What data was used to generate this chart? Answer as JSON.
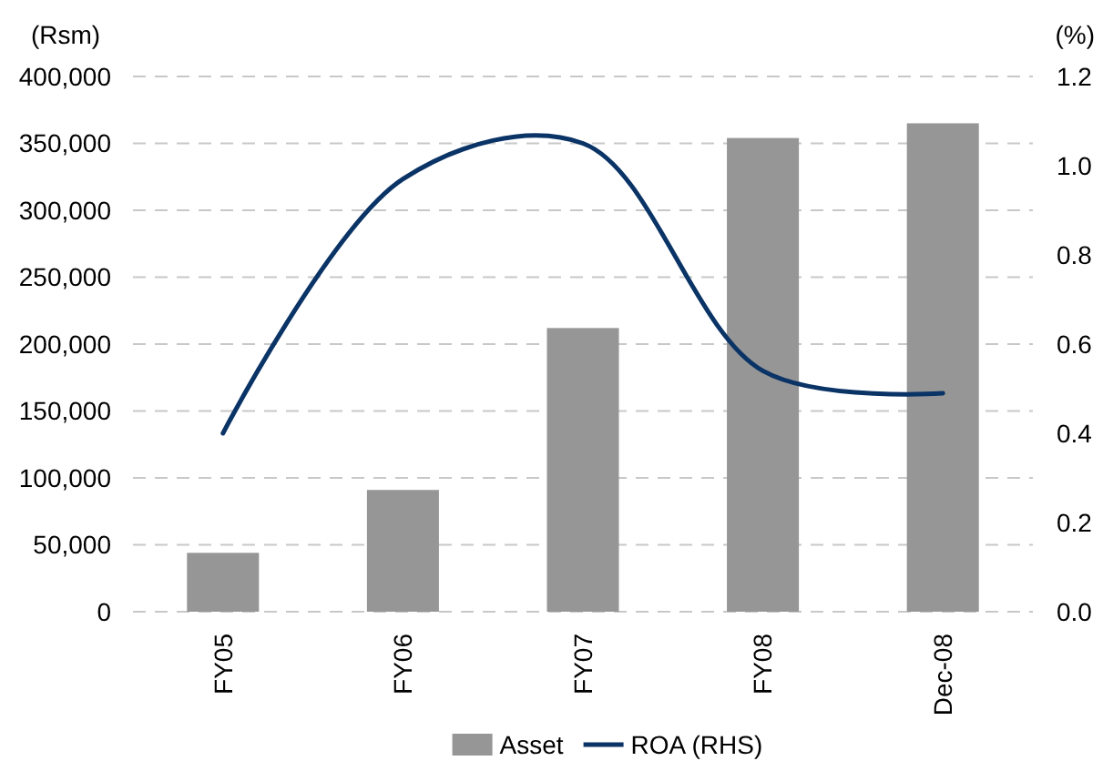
{
  "chart_data": {
    "type": "bar",
    "categories": [
      "FY05",
      "FY06",
      "FY07",
      "FY08",
      "Dec-08"
    ],
    "series": [
      {
        "name": "Asset",
        "color": "#969696",
        "values": [
          44000,
          91000,
          212000,
          354000,
          365000
        ]
      },
      {
        "name": "ROA (RHS)",
        "type": "line",
        "axis": "y2",
        "color": "#0a3366",
        "values": [
          0.4,
          0.97,
          1.05,
          0.54,
          0.49
        ]
      }
    ],
    "ylabel": "(Rsm)",
    "y2label": "(%)",
    "ylim": [
      0,
      400000
    ],
    "yticks": [
      {
        "value": 0,
        "label": "0"
      },
      {
        "value": 50000,
        "label": "50,000"
      },
      {
        "value": 100000,
        "label": "100,000"
      },
      {
        "value": 150000,
        "label": "150,000"
      },
      {
        "value": 200000,
        "label": "200,000"
      },
      {
        "value": 250000,
        "label": "250,000"
      },
      {
        "value": 300000,
        "label": "300,000"
      },
      {
        "value": 350000,
        "label": "350,000"
      },
      {
        "value": 400000,
        "label": "400,000"
      }
    ],
    "y2lim": [
      0,
      1.2
    ],
    "y2ticks": [
      {
        "value": 0,
        "label": "0.0"
      },
      {
        "value": 0.2,
        "label": "0.2"
      },
      {
        "value": 0.4,
        "label": "0.4"
      },
      {
        "value": 0.6,
        "label": "0.6"
      },
      {
        "value": 0.8,
        "label": "0.8"
      },
      {
        "value": 1,
        "label": "1.0"
      },
      {
        "value": 1.2,
        "label": "1.2"
      }
    ],
    "grid": "y",
    "legend": "bottom"
  }
}
